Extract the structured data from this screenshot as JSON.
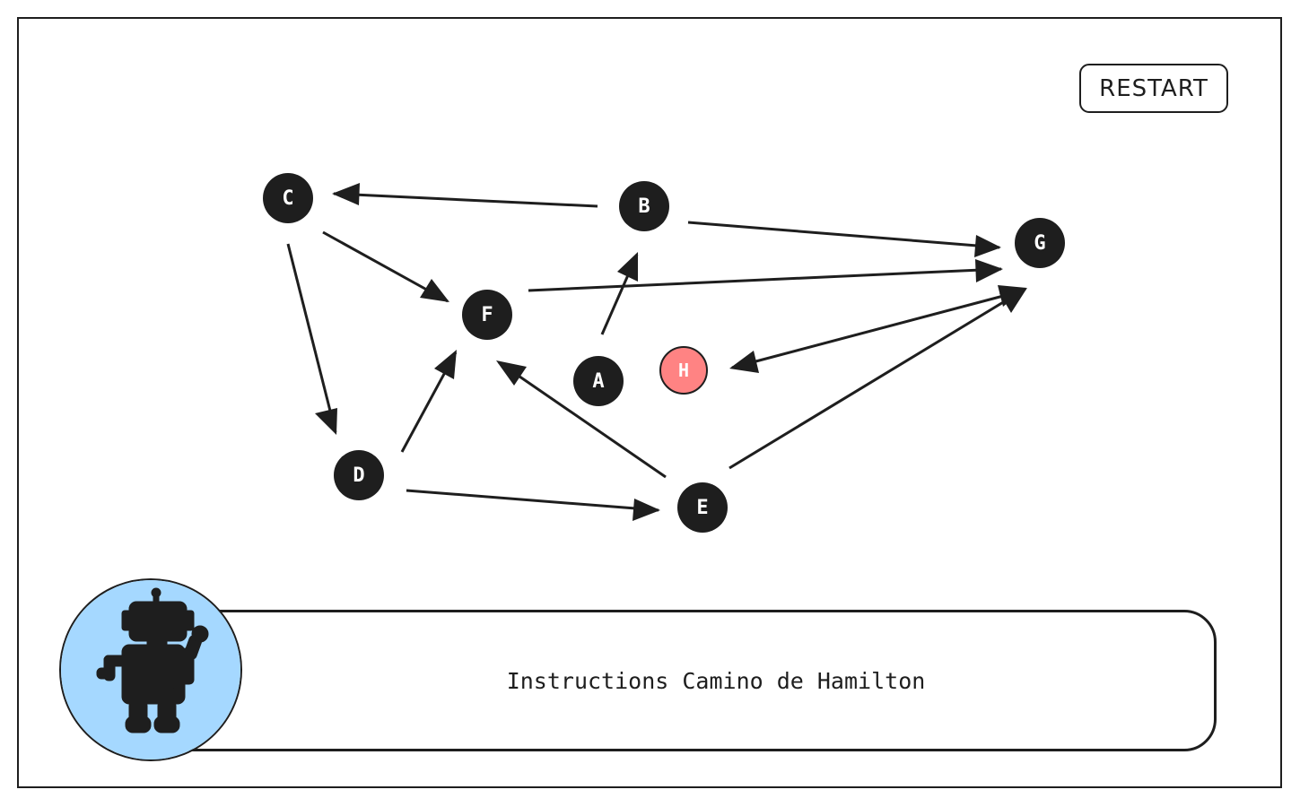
{
  "toolbar": {
    "restart_label": "RESTART"
  },
  "graph": {
    "nodes": [
      {
        "id": "A",
        "label": "A"
      },
      {
        "id": "B",
        "label": "B"
      },
      {
        "id": "C",
        "label": "C"
      },
      {
        "id": "D",
        "label": "D"
      },
      {
        "id": "E",
        "label": "E"
      },
      {
        "id": "F",
        "label": "F"
      },
      {
        "id": "G",
        "label": "G"
      },
      {
        "id": "H",
        "label": "H",
        "current": true
      }
    ],
    "edges": [
      {
        "from": "B",
        "to": "C"
      },
      {
        "from": "B",
        "to": "G"
      },
      {
        "from": "C",
        "to": "F"
      },
      {
        "from": "C",
        "to": "D"
      },
      {
        "from": "F",
        "to": "G"
      },
      {
        "from": "A",
        "to": "B"
      },
      {
        "from": "G",
        "to": "H"
      },
      {
        "from": "H",
        "to": "G"
      },
      {
        "from": "D",
        "to": "F"
      },
      {
        "from": "D",
        "to": "E"
      },
      {
        "from": "E",
        "to": "F"
      },
      {
        "from": "E",
        "to": "G"
      }
    ]
  },
  "instructions_panel": {
    "text": "Instructions Camino de Hamilton"
  },
  "colors": {
    "ink": "#1e1e1e",
    "node_fill": "#1e1e1e",
    "current_node_fill": "#ff8383",
    "avatar_background": "#a5d8ff"
  },
  "icons": {
    "avatar": "robot-icon"
  }
}
